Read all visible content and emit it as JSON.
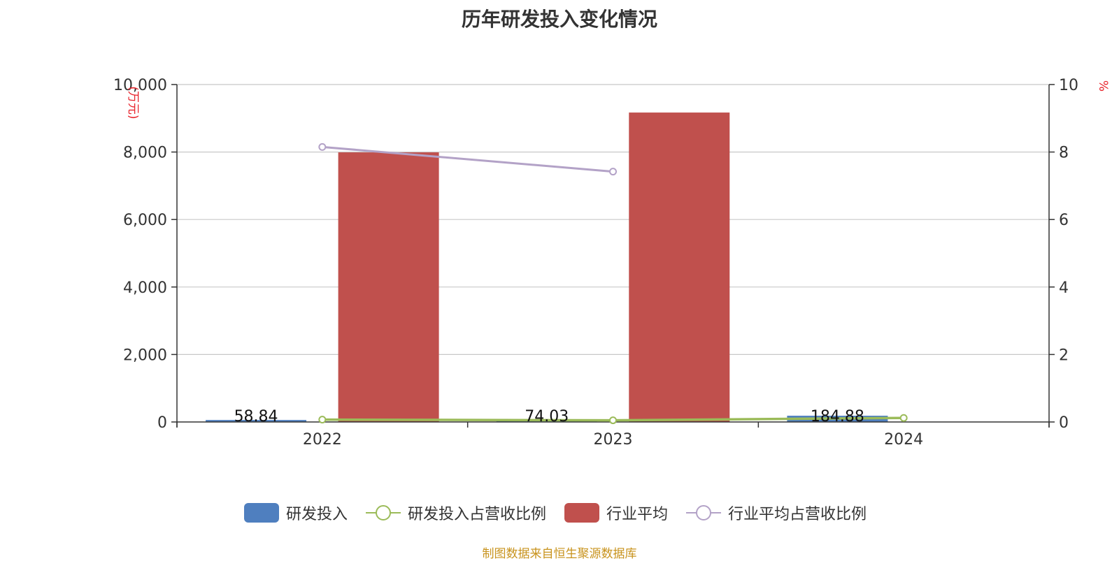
{
  "title": "历年研发投入变化情况",
  "source_note": "制图数据来自恒生聚源数据库",
  "colors": {
    "rd_bar": "#4f7fbf",
    "industry_bar": "#c0504d",
    "rd_ratio_line": "#9bbb59",
    "industry_ratio_line": "#b3a2c7",
    "axis_unit": "#e8222a",
    "grid": "#c8c8c8",
    "axis": "#333333",
    "source": "#c8931d"
  },
  "chart_data": {
    "type": "bar",
    "title": "历年研发投入变化情况",
    "categories": [
      "2022",
      "2023",
      "2024"
    ],
    "y_left": {
      "unit_label": "(万元)",
      "ylim": [
        0,
        10000
      ],
      "ticks": [
        "0",
        "2,000",
        "4,000",
        "6,000",
        "8,000",
        "10,000"
      ],
      "tick_values": [
        0,
        2000,
        4000,
        6000,
        8000,
        10000
      ]
    },
    "y_right": {
      "unit_label": "%",
      "ylim": [
        0,
        10
      ],
      "ticks": [
        "0",
        "2",
        "4",
        "6",
        "8",
        "10"
      ],
      "tick_values": [
        0,
        2,
        4,
        6,
        8,
        10
      ]
    },
    "grid": true,
    "legend_position": "bottom",
    "series": [
      {
        "name": "研发投入",
        "kind": "bar",
        "axis": "left",
        "values": [
          58.84,
          74.03,
          184.88
        ],
        "data_labels": [
          "58.84",
          "74.03",
          "184.88"
        ],
        "color_key": "rd_bar"
      },
      {
        "name": "研发投入占营收比例",
        "kind": "line",
        "axis": "right",
        "values": [
          0.07,
          0.05,
          0.12
        ],
        "color_key": "rd_ratio_line"
      },
      {
        "name": "行业平均",
        "kind": "bar",
        "axis": "left",
        "values": [
          7990,
          9170,
          null
        ],
        "color_key": "industry_bar"
      },
      {
        "name": "行业平均占营收比例",
        "kind": "line",
        "axis": "right",
        "values": [
          8.15,
          7.42,
          null
        ],
        "color_key": "industry_ratio_line"
      }
    ]
  }
}
